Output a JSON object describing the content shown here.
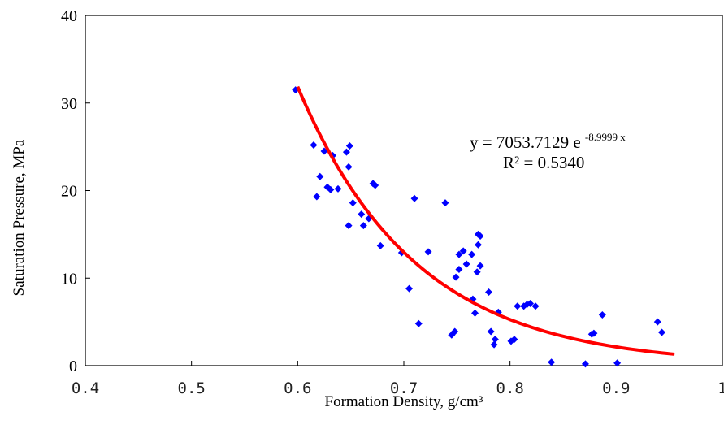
{
  "chart_data": {
    "type": "scatter",
    "xlabel": "Formation Density, g/cm³",
    "ylabel": "Saturation Pressure, MPa",
    "xlim": [
      0.4,
      1.0
    ],
    "ylim": [
      0,
      40
    ],
    "xticks": [
      0.4,
      0.5,
      0.6,
      0.7,
      0.8,
      0.9,
      1.0
    ],
    "xtick_labels": [
      "0.4",
      "0.5",
      "0.6",
      "0.7",
      "0.8",
      "0.9",
      "1"
    ],
    "yticks": [
      0,
      10,
      20,
      30,
      40
    ],
    "ytick_labels": [
      "0",
      "10",
      "20",
      "30",
      "40"
    ],
    "grid": false,
    "colors": {
      "points": "#0000ff",
      "trendline": "#ff0000"
    },
    "series": [
      {
        "marker": "diamond",
        "points": [
          [
            0.598,
            31.5
          ],
          [
            0.615,
            25.2
          ],
          [
            0.618,
            19.3
          ],
          [
            0.621,
            21.6
          ],
          [
            0.625,
            24.5
          ],
          [
            0.628,
            20.4
          ],
          [
            0.631,
            20.1
          ],
          [
            0.633,
            24.0
          ],
          [
            0.638,
            20.2
          ],
          [
            0.646,
            24.4
          ],
          [
            0.649,
            25.1
          ],
          [
            0.648,
            22.7
          ],
          [
            0.648,
            16.0
          ],
          [
            0.652,
            18.6
          ],
          [
            0.66,
            17.3
          ],
          [
            0.662,
            16.0
          ],
          [
            0.667,
            16.8
          ],
          [
            0.671,
            20.8
          ],
          [
            0.673,
            20.6
          ],
          [
            0.678,
            13.7
          ],
          [
            0.698,
            12.9
          ],
          [
            0.705,
            8.8
          ],
          [
            0.71,
            19.1
          ],
          [
            0.714,
            4.8
          ],
          [
            0.723,
            13.0
          ],
          [
            0.739,
            18.6
          ],
          [
            0.745,
            3.5
          ],
          [
            0.748,
            3.9
          ],
          [
            0.749,
            10.1
          ],
          [
            0.752,
            12.7
          ],
          [
            0.752,
            11.0
          ],
          [
            0.756,
            13.1
          ],
          [
            0.759,
            11.6
          ],
          [
            0.764,
            12.7
          ],
          [
            0.765,
            7.6
          ],
          [
            0.767,
            6.0
          ],
          [
            0.769,
            10.7
          ],
          [
            0.77,
            13.8
          ],
          [
            0.77,
            15.0
          ],
          [
            0.772,
            11.4
          ],
          [
            0.772,
            14.8
          ],
          [
            0.78,
            8.4
          ],
          [
            0.782,
            3.9
          ],
          [
            0.785,
            2.4
          ],
          [
            0.786,
            3.0
          ],
          [
            0.789,
            6.1
          ],
          [
            0.801,
            2.8
          ],
          [
            0.804,
            3.0
          ],
          [
            0.807,
            6.8
          ],
          [
            0.813,
            6.8
          ],
          [
            0.816,
            7.0
          ],
          [
            0.819,
            7.1
          ],
          [
            0.824,
            6.8
          ],
          [
            0.839,
            0.4
          ],
          [
            0.871,
            0.2
          ],
          [
            0.877,
            3.6
          ],
          [
            0.879,
            3.7
          ],
          [
            0.887,
            5.8
          ],
          [
            0.901,
            0.3
          ],
          [
            0.939,
            5.0
          ],
          [
            0.943,
            3.8
          ]
        ]
      }
    ],
    "trendline": {
      "type": "exponential",
      "a": 7053.7129,
      "b": -8.9999,
      "x_range": [
        0.6,
        0.955
      ]
    },
    "annotations": {
      "equation_base": "y = 7053.7129 e",
      "equation_exponent": "-8.9999 x",
      "r_squared": "R² = 0.5340"
    }
  }
}
